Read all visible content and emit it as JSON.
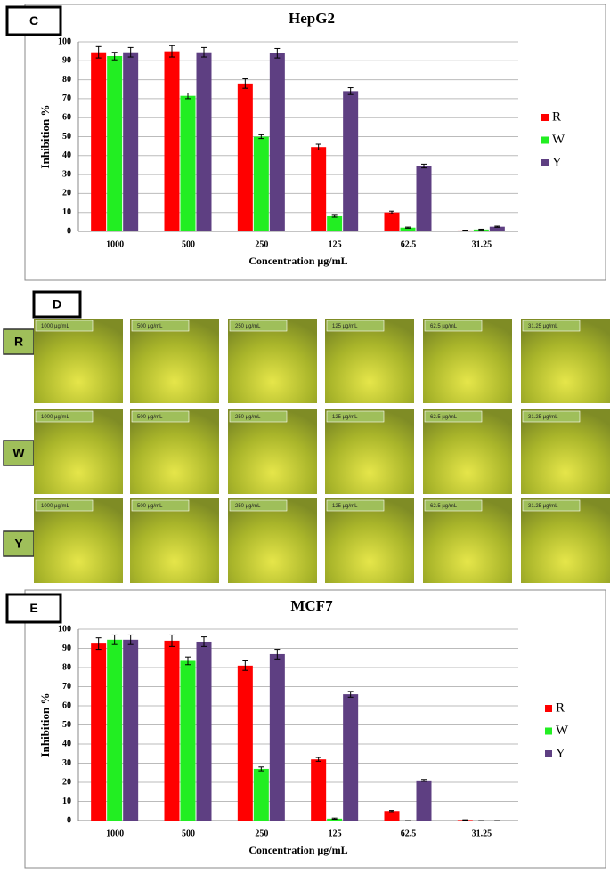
{
  "chart_data": [
    {
      "type": "bar",
      "panel_label": "C",
      "title": "HepG2",
      "x_label": "Concentration µg/mL",
      "y_label": "Inhibition  %",
      "categories": [
        "1000",
        "500",
        "250",
        "125",
        "62.5",
        "31.25"
      ],
      "ylim": [
        0,
        100
      ],
      "yticks": [
        0,
        10,
        20,
        30,
        40,
        50,
        60,
        70,
        80,
        90,
        100
      ],
      "grid": true,
      "legend": "right",
      "series": [
        {
          "name": "R",
          "color": "#ff0000",
          "values": [
            94.5,
            95,
            78,
            44.5,
            10,
            0.5
          ],
          "errors": [
            3,
            3,
            2.5,
            1.5,
            0.7,
            0.2
          ]
        },
        {
          "name": "W",
          "color": "#22ee22",
          "values": [
            92.5,
            71.5,
            50,
            8,
            2,
            1
          ],
          "errors": [
            2,
            1.5,
            1,
            0.5,
            0.3,
            0.2
          ]
        },
        {
          "name": "Y",
          "color": "#5e3f82",
          "values": [
            94.5,
            94.5,
            94,
            74,
            34.5,
            2.5
          ],
          "errors": [
            2.5,
            2.5,
            2.5,
            1.8,
            1,
            0.3
          ]
        }
      ]
    },
    {
      "type": "bar",
      "panel_label": "E",
      "title": "MCF7",
      "x_label": "Concentration µg/mL",
      "y_label": "Inhibition  %",
      "categories": [
        "1000",
        "500",
        "250",
        "125",
        "62.5",
        "31.25"
      ],
      "ylim": [
        0,
        100
      ],
      "yticks": [
        0,
        10,
        20,
        30,
        40,
        50,
        60,
        70,
        80,
        90,
        100
      ],
      "grid": true,
      "legend": "right",
      "series": [
        {
          "name": "R",
          "color": "#ff0000",
          "values": [
            92.5,
            94,
            81,
            32,
            5,
            0.3
          ],
          "errors": [
            3,
            3,
            2.5,
            1,
            0.3,
            0.1
          ]
        },
        {
          "name": "W",
          "color": "#22ee22",
          "values": [
            94.5,
            83.5,
            27,
            1,
            0,
            0
          ],
          "errors": [
            2.5,
            2,
            1,
            0.3,
            0,
            0
          ]
        },
        {
          "name": "Y",
          "color": "#5e3f82",
          "values": [
            94.5,
            93.5,
            87,
            66,
            21,
            0
          ],
          "errors": [
            2.5,
            2.5,
            2.5,
            1.5,
            0.5,
            0
          ]
        }
      ]
    }
  ],
  "image_panel": {
    "panel_label": "D",
    "rows": [
      "R",
      "W",
      "Y"
    ],
    "image_labels": [
      "1000 µg/mL",
      "500 µg/mL",
      "250 µg/mL",
      "125 µg/mL",
      "62.5 µg/mL",
      "31.25 µg/mL"
    ]
  }
}
